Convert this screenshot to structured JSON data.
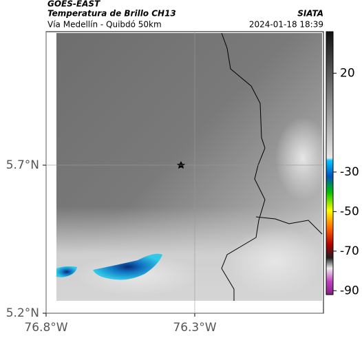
{
  "header": {
    "source": "GOES-EAST",
    "product": "Temperatura de Brillo CH13",
    "route": "Vía Medellín - Quibdó 50km",
    "brand": "SIATA",
    "datetime": "2024-01-18 18:39"
  },
  "map": {
    "xlim": [
      -76.8,
      -75.867
    ],
    "ylim": [
      5.2,
      6.151
    ],
    "xticks": [
      {
        "value": -76.8,
        "label": "76.8°W"
      },
      {
        "value": -76.3,
        "label": "76.3°W"
      }
    ],
    "yticks": [
      {
        "value": 5.7,
        "label": "5.7°N"
      },
      {
        "value": 5.2,
        "label": "5.2°N"
      }
    ],
    "grid": true
  },
  "colorbar": {
    "lim": [
      -92,
      41
    ],
    "ticks": [
      20,
      -30,
      -50,
      -70,
      -90
    ]
  }
}
